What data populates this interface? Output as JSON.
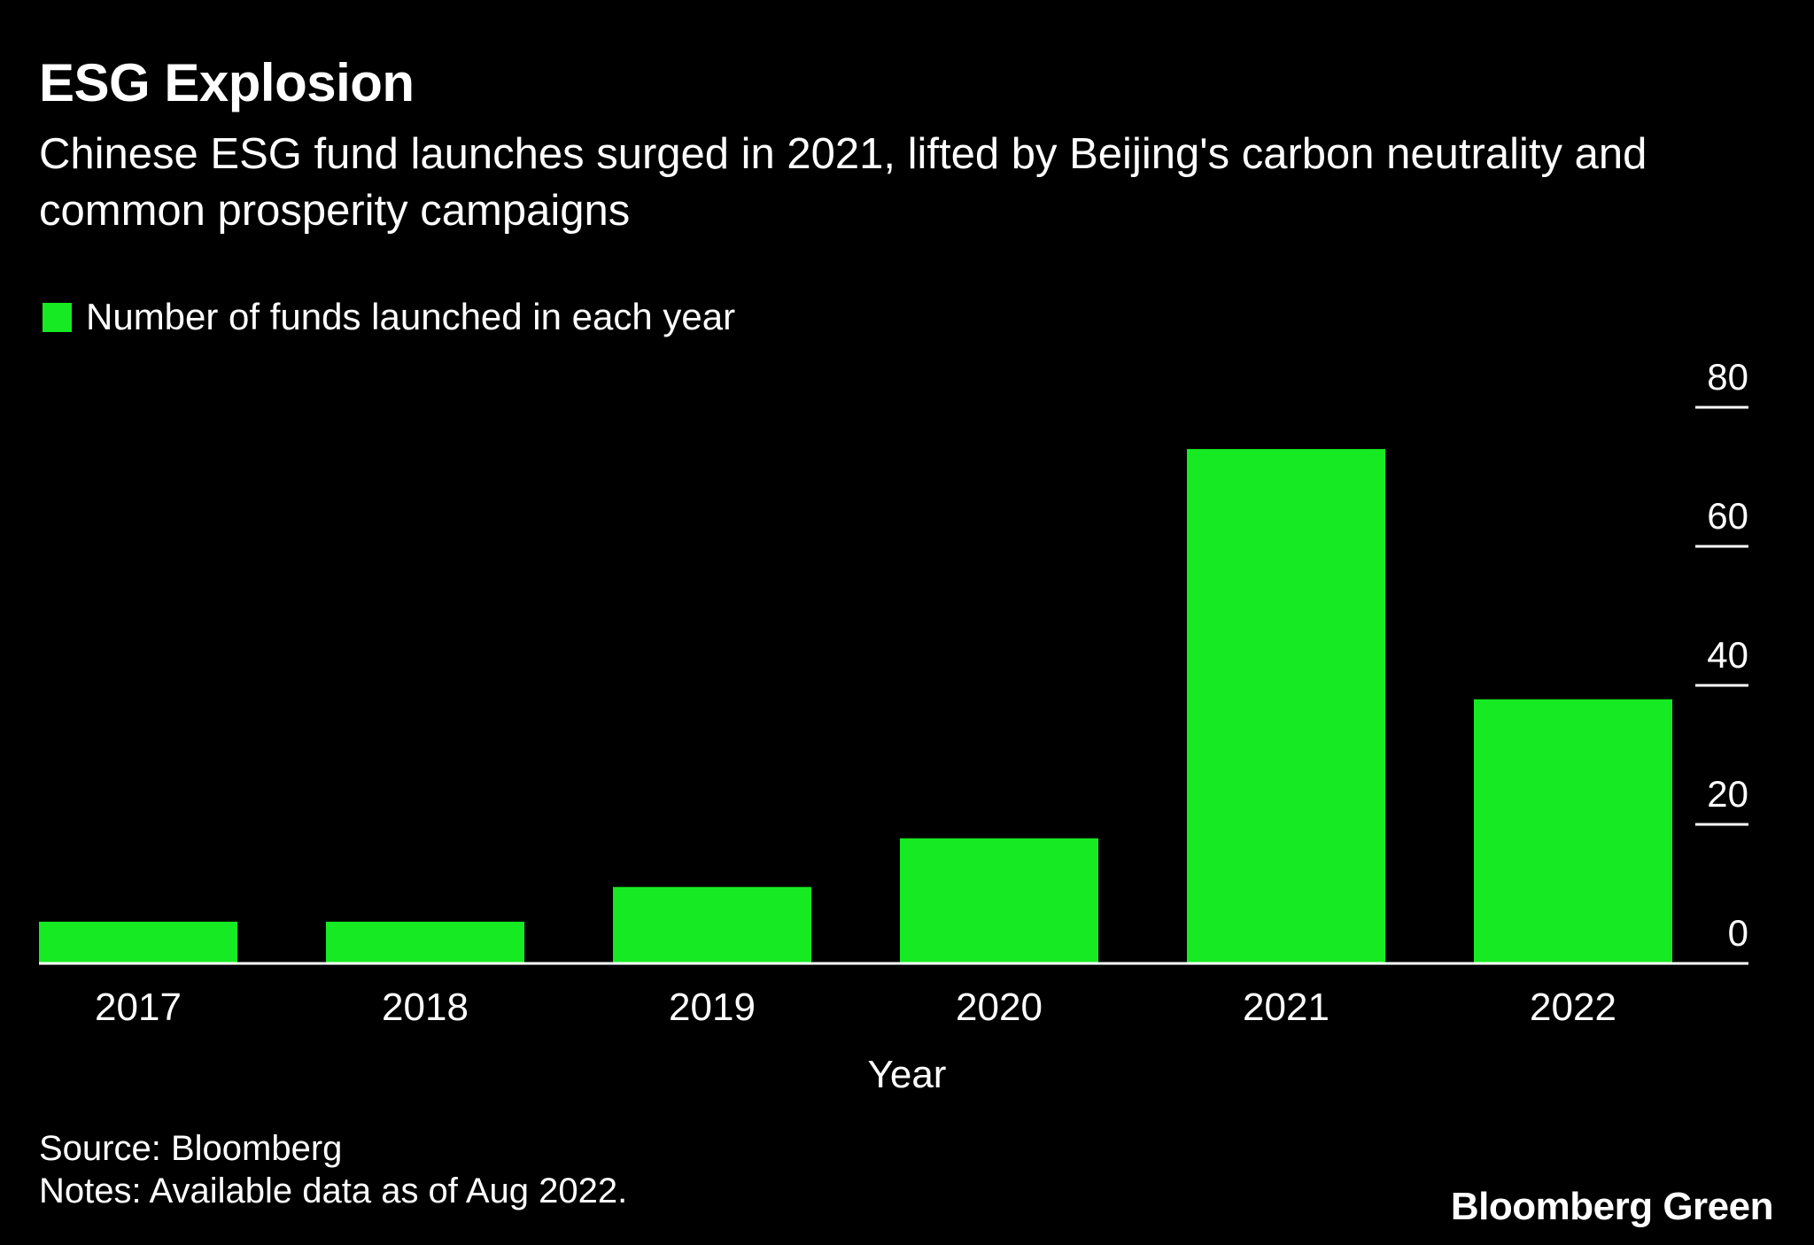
{
  "title": "ESG Explosion",
  "subtitle": "Chinese ESG fund launches surged in 2021, lifted by Beijing's carbon neutrality and common prosperity campaigns",
  "legend": {
    "label": "Number of funds launched in each year",
    "color": "#16ea22"
  },
  "footer": {
    "source": "Source: Bloomberg",
    "notes": "Notes: Available data as of Aug 2022.",
    "brand": "Bloomberg Green"
  },
  "chart_data": {
    "type": "bar",
    "categories": [
      "2017",
      "2018",
      "2019",
      "2020",
      "2021",
      "2022"
    ],
    "series": [
      {
        "name": "Number of funds launched in each year",
        "values": [
          6,
          6,
          11,
          18,
          74,
          38
        ],
        "color": "#16ea22"
      }
    ],
    "xlabel": "Year",
    "ylabel": "",
    "ylim": [
      0,
      80
    ],
    "yticks": [
      0,
      20,
      40,
      60,
      80
    ],
    "y_axis_position": "right",
    "grid": false,
    "legend_position": "top-left"
  }
}
